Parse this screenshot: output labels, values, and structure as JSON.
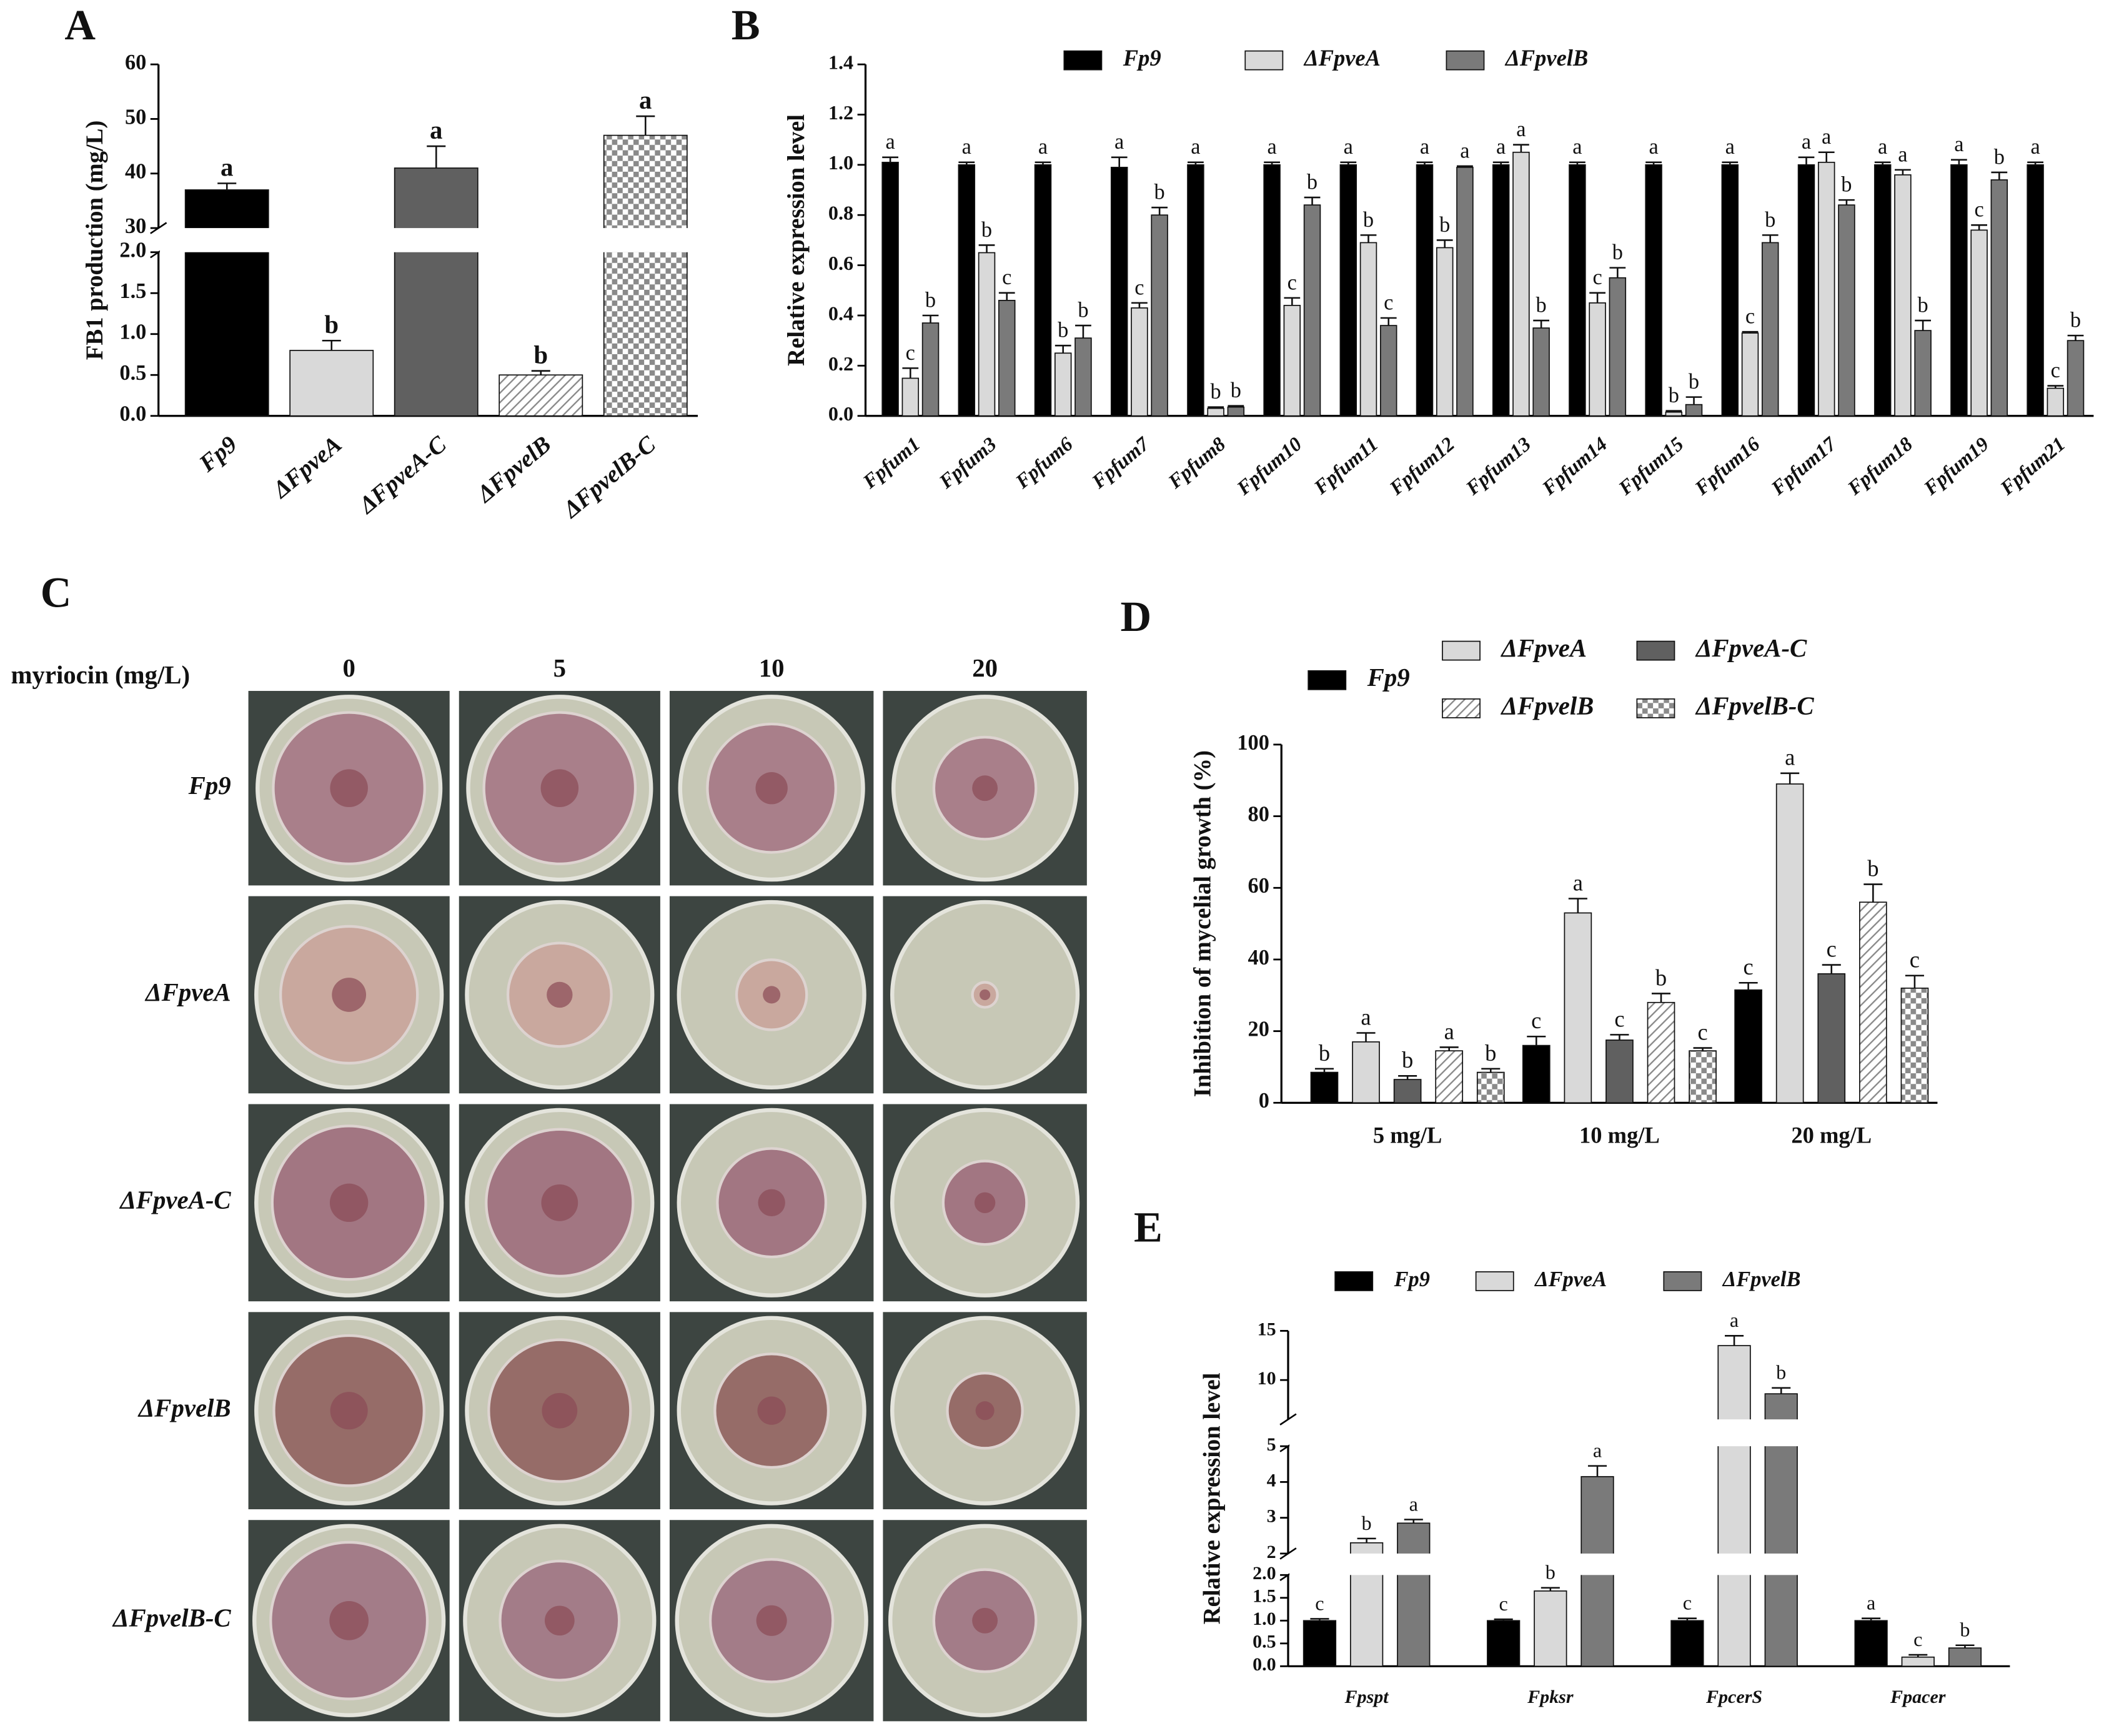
{
  "chart_data": [
    {
      "panel": "A",
      "type": "bar",
      "ylabel": "FB1 production (mg/L)",
      "categories": [
        "Fp9",
        "ΔFpveA",
        "ΔFpveA-C",
        "ΔFpvelB",
        "ΔFpvelB-C"
      ],
      "values": [
        37,
        0.8,
        41,
        0.5,
        47
      ],
      "errors": [
        1.2,
        0.12,
        4,
        0.05,
        3.5
      ],
      "letters": [
        "a",
        "b",
        "a",
        "b",
        "a"
      ],
      "colors": [
        "#000000",
        "#d9d9d9",
        "#606060",
        "#8a8a8a",
        "#8a8a8a"
      ],
      "fills": [
        "solid",
        "solid",
        "solid",
        "hatch",
        "checker"
      ],
      "ylim": [
        0,
        60
      ],
      "ysegments": [
        [
          0,
          2
        ],
        [
          30,
          60
        ]
      ],
      "yticks": [
        {
          "value": 0,
          "label": "0.0"
        },
        0.5,
        {
          "value": 1,
          "label": "1.0"
        },
        1.5,
        {
          "value": 2,
          "label": "2.0"
        },
        30,
        40,
        50,
        60
      ],
      "xlabel_italic": true
    },
    {
      "panel": "B",
      "type": "bar",
      "ylabel": "Relative expression level",
      "categories": [
        "Fpfum1",
        "Fpfum3",
        "Fpfum6",
        "Fpfum7",
        "Fpfum8",
        "Fpfum10",
        "Fpfum11",
        "Fpfum12",
        "Fpfum13",
        "Fpfum14",
        "Fpfum15",
        "Fpfum16",
        "Fpfum17",
        "Fpfum18",
        "Fpfum19",
        "Fpfum21"
      ],
      "series": [
        {
          "name": "Fp9",
          "color": "#000000",
          "values": [
            1.01,
            1.0,
            1.0,
            0.99,
            1.0,
            1.0,
            1.0,
            1.0,
            1.0,
            1.0,
            1.0,
            1.0,
            1.0,
            1.0,
            1.0,
            1.0
          ],
          "errors": [
            0.02,
            0.01,
            0.01,
            0.04,
            0.01,
            0.01,
            0.01,
            0.01,
            0.01,
            0.01,
            0.01,
            0.01,
            0.03,
            0.01,
            0.02,
            0.01
          ],
          "letters": [
            "a",
            "a",
            "a",
            "a",
            "a",
            "a",
            "a",
            "a",
            "a",
            "a",
            "a",
            "a",
            "a",
            "a",
            "a",
            "a"
          ]
        },
        {
          "name": "ΔFpveA",
          "color": "#d9d9d9",
          "values": [
            0.15,
            0.65,
            0.25,
            0.43,
            0.03,
            0.44,
            0.69,
            0.67,
            1.05,
            0.45,
            0.015,
            0.33,
            1.01,
            0.96,
            0.74,
            0.11
          ],
          "errors": [
            0.04,
            0.03,
            0.03,
            0.02,
            0.005,
            0.03,
            0.03,
            0.03,
            0.03,
            0.04,
            0.005,
            0.005,
            0.04,
            0.02,
            0.02,
            0.01
          ],
          "letters": [
            "c",
            "b",
            "b",
            "c",
            "b",
            "c",
            "b",
            "b",
            "a",
            "c",
            "b",
            "c",
            "a",
            "a",
            "c",
            "c"
          ]
        },
        {
          "name": "ΔFpvelB",
          "color": "#7a7a7a",
          "values": [
            0.37,
            0.46,
            0.31,
            0.8,
            0.035,
            0.84,
            0.36,
            0.99,
            0.35,
            0.55,
            0.045,
            0.69,
            0.84,
            0.34,
            0.94,
            0.3
          ],
          "errors": [
            0.03,
            0.03,
            0.05,
            0.03,
            0.005,
            0.03,
            0.03,
            0.005,
            0.03,
            0.04,
            0.03,
            0.03,
            0.02,
            0.04,
            0.03,
            0.02
          ],
          "letters": [
            "b",
            "c",
            "b",
            "b",
            "b",
            "b",
            "c",
            "a",
            "b",
            "b",
            "b",
            "b",
            "b",
            "b",
            "b",
            "b"
          ]
        }
      ],
      "ylim": [
        0,
        1.4
      ],
      "yticks": [
        {
          "value": 0,
          "label": "0.0"
        },
        0.2,
        0.4,
        0.6,
        0.8,
        {
          "value": 1,
          "label": "1.0"
        },
        1.2,
        1.4
      ],
      "xlabel_italic": true
    },
    {
      "panel": "D",
      "type": "bar",
      "ylabel": "Inhibition of mycelial growth (%)",
      "categories": [
        "5 mg/L",
        "10 mg/L",
        "20 mg/L"
      ],
      "series": [
        {
          "name": "Fp9",
          "color": "#000000",
          "fill": "solid",
          "values": [
            8.5,
            16,
            31.5
          ],
          "errors": [
            1,
            2.5,
            2
          ],
          "letters": [
            "b",
            "c",
            "c"
          ]
        },
        {
          "name": "ΔFpveA",
          "color": "#d9d9d9",
          "fill": "solid",
          "values": [
            17,
            53,
            89
          ],
          "errors": [
            2.5,
            4,
            3
          ],
          "letters": [
            "a",
            "a",
            "a"
          ]
        },
        {
          "name": "ΔFpveA-C",
          "color": "#606060",
          "fill": "solid",
          "values": [
            6.5,
            17.5,
            36
          ],
          "errors": [
            1,
            1.5,
            2.5
          ],
          "letters": [
            "b",
            "c",
            "c"
          ]
        },
        {
          "name": "ΔFpvelB",
          "color": "#8a8a8a",
          "fill": "hatch",
          "values": [
            14.5,
            28,
            56
          ],
          "errors": [
            1,
            2.5,
            5
          ],
          "letters": [
            "a",
            "b",
            "b"
          ]
        },
        {
          "name": "ΔFpvelB-C",
          "color": "#8a8a8a",
          "fill": "checker",
          "values": [
            8.5,
            14.5,
            32
          ],
          "errors": [
            1,
            0.8,
            3.5
          ],
          "letters": [
            "b",
            "c",
            "c"
          ]
        }
      ],
      "ylim": [
        0,
        100
      ],
      "yticks": [
        0,
        20,
        40,
        60,
        80,
        100
      ],
      "xlabel_italic": false
    },
    {
      "panel": "E",
      "type": "bar",
      "ylabel": "Relative expression level",
      "categories": [
        "Fpspt",
        "Fpksr",
        "FpcerS",
        "Fpacer"
      ],
      "series": [
        {
          "name": "Fp9",
          "color": "#000000",
          "values": [
            1.0,
            1.0,
            1.0,
            1.0
          ],
          "errors": [
            0.04,
            0.03,
            0.05,
            0.05
          ],
          "letters": [
            "c",
            "c",
            "c",
            "a"
          ]
        },
        {
          "name": "ΔFpveA",
          "color": "#d9d9d9",
          "values": [
            2.3,
            1.65,
            13.5,
            0.2
          ],
          "errors": [
            0.12,
            0.07,
            1,
            0.05
          ],
          "letters": [
            "b",
            "b",
            "a",
            "c"
          ]
        },
        {
          "name": "ΔFpvelB",
          "color": "#7a7a7a",
          "values": [
            2.85,
            4.15,
            8.6,
            0.4
          ],
          "errors": [
            0.1,
            0.3,
            0.6,
            0.06
          ],
          "letters": [
            "a",
            "a",
            "b",
            "b"
          ]
        }
      ],
      "ylim": [
        0,
        15
      ],
      "ysegments": [
        [
          0,
          2
        ],
        [
          2,
          5
        ],
        [
          6,
          15
        ]
      ],
      "yticks": [
        {
          "value": 0,
          "label": "0.0"
        },
        0.5,
        {
          "value": 1,
          "label": "1.0"
        },
        1.5,
        {
          "value": 2,
          "label": "2.0"
        },
        2,
        3,
        4,
        5,
        10,
        15
      ],
      "xlabel_italic": true
    }
  ],
  "plates": {
    "panel": "C",
    "label": "myriocin  (mg/L)",
    "columns": [
      "0",
      "5",
      "10",
      "20"
    ],
    "rows": [
      "Fp9",
      "ΔFpveA",
      "ΔFpveA-C",
      "ΔFpvelB",
      "ΔFpvelB-C"
    ]
  }
}
